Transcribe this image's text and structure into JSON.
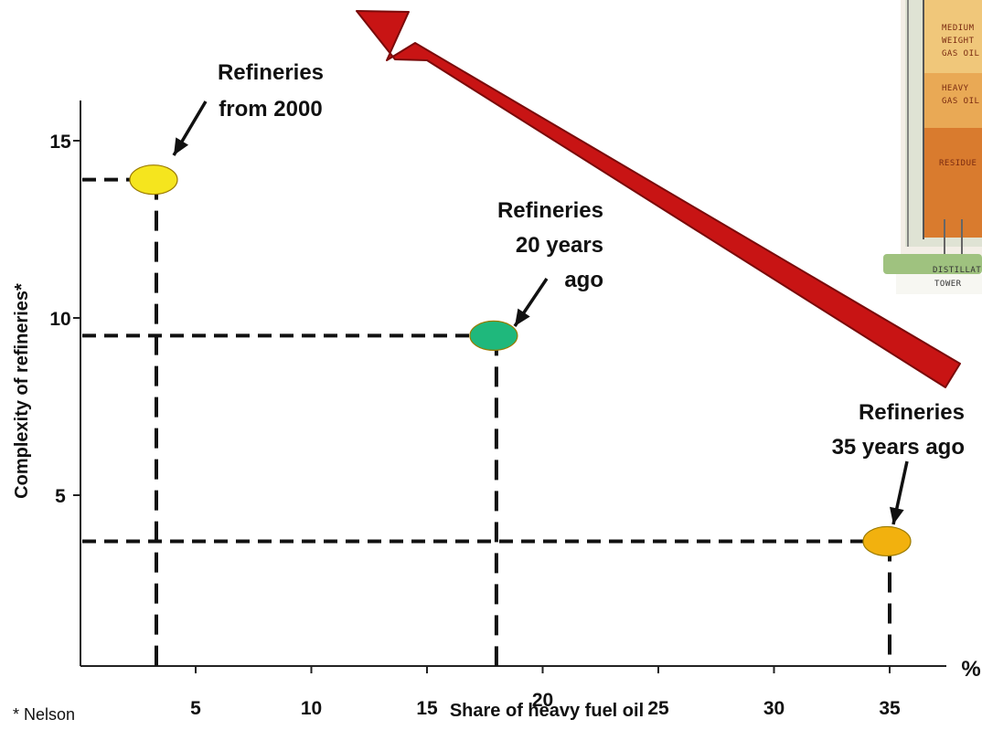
{
  "chart_data": {
    "type": "scatter",
    "xlabel": "Share of heavy fuel oil",
    "ylabel": "Complexity of refineries*",
    "x_unit": "%",
    "xlim": [
      0,
      36.5
    ],
    "ylim": [
      0,
      16.2
    ],
    "x_ticks": [
      "5",
      "10",
      "15",
      "20",
      "25",
      "30",
      "35"
    ],
    "y_ticks": [
      "5",
      "10",
      "15"
    ],
    "grid": false,
    "footnote": "* Nelson",
    "points": [
      {
        "x": 3.3,
        "y": 13.9,
        "color": "#f5e51e",
        "label_lines": [
          "Refineries",
          "from 2000"
        ]
      },
      {
        "x": 18.0,
        "y": 9.5,
        "color": "#1fb87c",
        "label_lines": [
          "Refineries",
          "20 years",
          "ago"
        ]
      },
      {
        "x": 35.0,
        "y": 3.7,
        "color": "#f2b10e",
        "label_lines": [
          "Refineries",
          "35 years ago"
        ]
      }
    ],
    "trend_arrow": {
      "color": "#c81414",
      "direction": "toward lower share of heavy fuel oil and higher complexity"
    }
  },
  "inset_image": {
    "labels": [
      "MEDIUM",
      "WEIGHT",
      "GAS OIL",
      "HEAVY",
      "GAS OIL",
      "RESIDUE",
      "DISTILLATION",
      "TOWER"
    ]
  }
}
